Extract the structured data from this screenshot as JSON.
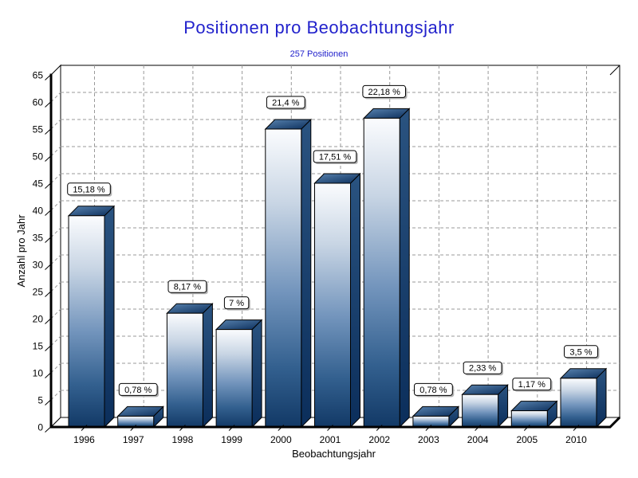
{
  "title": "Positionen pro Beobachtungsjahr",
  "subtitle": "257 Positionen",
  "colors": {
    "title_text": "#2222CC",
    "bar_top_light": "#FBFCFE",
    "bar_bottom_dark": "#123966",
    "bar_cap_dark": "#0B2E5B",
    "bar_cap_light": "#5A84B0",
    "gridline": "#999999",
    "axis_line": "#000000",
    "label_box_bg": "#FFFFFF",
    "label_box_border": "#000000",
    "label_box_shadow": "#B3B3B3",
    "background": "#FFFFFF"
  },
  "chart_data": {
    "type": "bar",
    "style": "3d-vertical-bars",
    "title": "Positionen pro Beobachtungsjahr",
    "subtitle": "257 Positionen",
    "total_positions": 257,
    "categories": [
      "1996",
      "1997",
      "1998",
      "1999",
      "2000",
      "2001",
      "2002",
      "2003",
      "2004",
      "2005",
      "2010"
    ],
    "values": [
      39,
      2,
      21,
      18,
      55,
      45,
      57,
      2,
      6,
      3,
      9
    ],
    "bar_labels": [
      "15,18 %",
      "0,78 %",
      "8,17 %",
      "7 %",
      "21,4 %",
      "17,51 %",
      "22,18 %",
      "0,78 %",
      "2,33 %",
      "1,17 %",
      "3,5 %"
    ],
    "xlabel": "Beobachtungsjahr",
    "ylabel": "Anzahl pro Jahr",
    "ylim": [
      0,
      65
    ],
    "ytick_step": 5,
    "yticks": [
      0,
      5,
      10,
      15,
      20,
      25,
      30,
      35,
      40,
      45,
      50,
      55,
      60,
      65
    ],
    "grid": "dashed",
    "legend": "none"
  }
}
